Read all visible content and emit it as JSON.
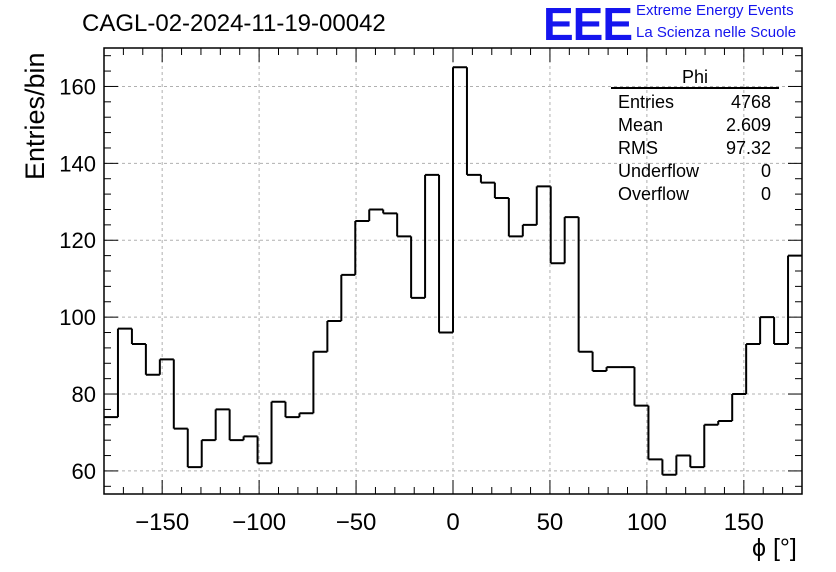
{
  "title": "CAGL-02-2024-11-19-00042",
  "logo": {
    "mark": "EEE",
    "line1": "Extreme Energy Events",
    "line2": "La Scienza nelle Scuole",
    "color": "#1515ee"
  },
  "stats": {
    "name": "Phi",
    "rows": [
      {
        "label": "Entries",
        "value": "4768"
      },
      {
        "label": "Mean",
        "value": "2.609"
      },
      {
        "label": "RMS",
        "value": "97.32"
      },
      {
        "label": "Underflow",
        "value": "0"
      },
      {
        "label": "Overflow",
        "value": "0"
      }
    ]
  },
  "chart_data": {
    "type": "bar",
    "title": "CAGL-02-2024-11-19-00042",
    "xlabel": "ϕ [°]",
    "ylabel": "Entries/bin",
    "xlim": [
      -180,
      180
    ],
    "ylim": [
      54,
      170
    ],
    "bin_width": 7.2,
    "grid": true,
    "line_color": "#000000",
    "x_ticks": [
      -150,
      -100,
      -50,
      0,
      50,
      100,
      150
    ],
    "x_tick_labels": [
      "−150",
      "−100",
      "−50",
      "0",
      "50",
      "100",
      "150"
    ],
    "y_ticks": [
      60,
      80,
      100,
      120,
      140,
      160
    ],
    "y_tick_labels": [
      "60",
      "80",
      "100",
      "120",
      "140",
      "160"
    ],
    "bin_edges_start": -180,
    "values": [
      74,
      97,
      93,
      85,
      89,
      71,
      61,
      68,
      76,
      68,
      69,
      62,
      78,
      74,
      75,
      91,
      99,
      111,
      125,
      128,
      127,
      121,
      105,
      137,
      96,
      165,
      137,
      135,
      131,
      121,
      124,
      134,
      114,
      126,
      91,
      86,
      87,
      87,
      77,
      63,
      59,
      64,
      61,
      72,
      73,
      80,
      93,
      100,
      93,
      116
    ]
  }
}
